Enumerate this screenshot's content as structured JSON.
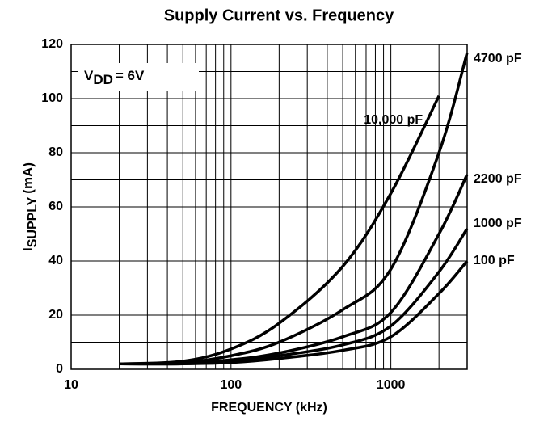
{
  "chart_data": {
    "type": "line",
    "title": "Supply Current vs. Frequency",
    "xlabel": "FREQUENCY (kHz)",
    "ylabel": {
      "main": "I",
      "sub": "SUPPLY",
      "rest": "(mA)"
    },
    "annotation": {
      "main": "V",
      "sub": "DD",
      "rest": "= 6V"
    },
    "x": [
      20,
      50,
      100,
      200,
      500,
      1000,
      2000,
      3000
    ],
    "series": [
      {
        "name": "100 pF",
        "color": "#000000",
        "values": [
          2,
          2,
          2.5,
          4,
          7,
          12,
          28,
          40
        ]
      },
      {
        "name": "1000 pF",
        "color": "#000000",
        "values": [
          2,
          2,
          3,
          5,
          9,
          16,
          36,
          52
        ]
      },
      {
        "name": "2200 pF",
        "color": "#000000",
        "values": [
          2,
          2.2,
          3.5,
          6,
          12,
          21,
          50,
          72
        ]
      },
      {
        "name": "4700 pF",
        "color": "#000000",
        "values": [
          2,
          2.5,
          5,
          10,
          22,
          37,
          80,
          117
        ]
      },
      {
        "name": "10,000 pF",
        "color": "#000000",
        "values": [
          2,
          3,
          7.5,
          17,
          38,
          65,
          101,
          null
        ]
      }
    ],
    "xscale": "log",
    "xlim": [
      10,
      3000
    ],
    "xticks": [
      10,
      100,
      1000
    ],
    "ylim": [
      0,
      120
    ],
    "yticks": [
      0,
      20,
      40,
      60,
      80,
      100,
      120
    ],
    "grid": true
  }
}
